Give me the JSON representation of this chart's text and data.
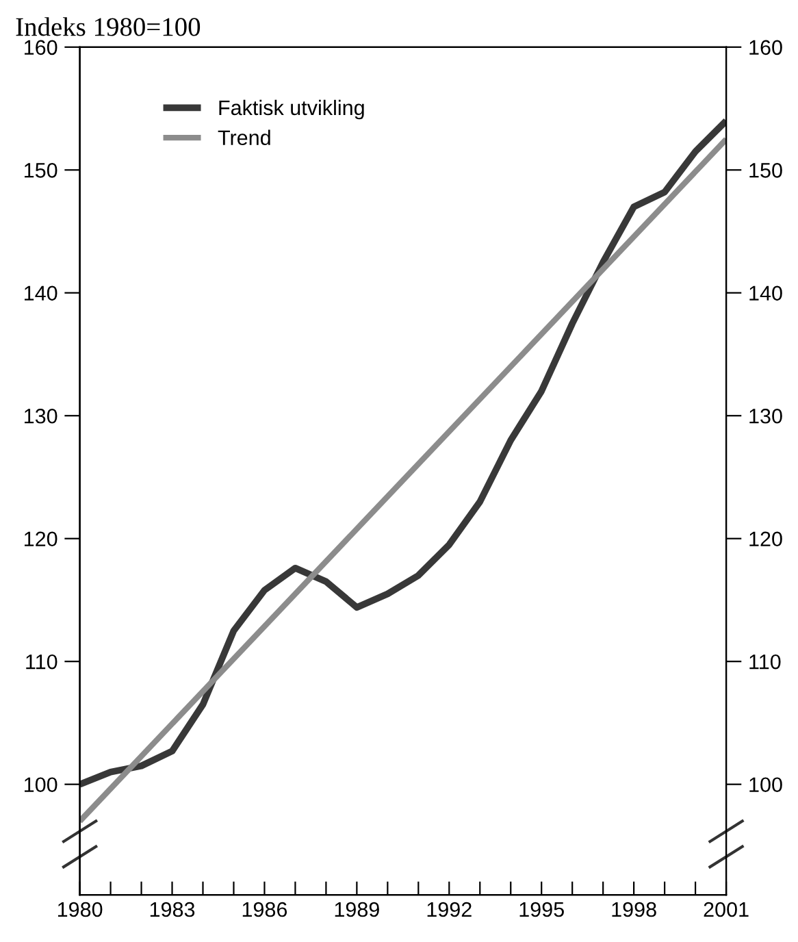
{
  "chart_data": {
    "type": "line",
    "title": "Indeks 1980=100",
    "x": [
      1980,
      1981,
      1982,
      1983,
      1984,
      1985,
      1986,
      1987,
      1988,
      1989,
      1990,
      1991,
      1992,
      1993,
      1994,
      1995,
      1996,
      1997,
      1998,
      1999,
      2000,
      2001
    ],
    "series": [
      {
        "name": "Faktisk utvikling",
        "color": "#383838",
        "values": [
          100,
          101,
          101.5,
          102.7,
          106.5,
          112.5,
          115.8,
          117.6,
          116.5,
          114.4,
          115.5,
          117,
          119.5,
          123,
          128,
          132,
          137.5,
          142.5,
          147,
          148.2,
          151.5,
          154
        ]
      },
      {
        "name": "Trend",
        "color": "#8c8c8c",
        "x": [
          1980,
          2001
        ],
        "values": [
          97,
          152.5
        ]
      }
    ],
    "xlim": [
      1980,
      2001
    ],
    "xticks": [
      1980,
      {
        "value": 1981,
        "label": null
      },
      {
        "value": 1982,
        "label": null
      },
      1983,
      {
        "value": 1984,
        "label": null
      },
      {
        "value": 1985,
        "label": null
      },
      1986,
      {
        "value": 1987,
        "label": null
      },
      {
        "value": 1988,
        "label": null
      },
      1989,
      {
        "value": 1990,
        "label": null
      },
      {
        "value": 1991,
        "label": null
      },
      1992,
      {
        "value": 1993,
        "label": null
      },
      {
        "value": 1994,
        "label": null
      },
      1995,
      {
        "value": 1996,
        "label": null
      },
      {
        "value": 1997,
        "label": null
      },
      1998,
      {
        "value": 1999,
        "label": null
      },
      {
        "value": 2000,
        "label": null
      },
      2001
    ],
    "ylim": [
      91,
      160
    ],
    "yticks": [
      100,
      110,
      120,
      130,
      140,
      150,
      160
    ],
    "y2lim": [
      91,
      160
    ],
    "y2ticks": [
      100,
      110,
      120,
      130,
      140,
      150,
      160
    ],
    "legend": "top left",
    "grid": false,
    "line_style": "solid",
    "marker": "none"
  }
}
